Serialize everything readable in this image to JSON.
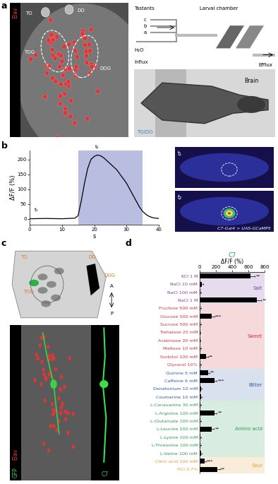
{
  "chart_data": [
    {
      "type": "line",
      "xlabel": "s",
      "ylabel": "ΔF/F (%)",
      "x": [
        0,
        5,
        10,
        14,
        15,
        16,
        17,
        18,
        19,
        20,
        21,
        22,
        23,
        24,
        25,
        26,
        27,
        28,
        29,
        30,
        31,
        32,
        33,
        34,
        35,
        36,
        37,
        38,
        39,
        40
      ],
      "values": [
        0,
        1,
        0,
        2,
        10,
        60,
        120,
        170,
        200,
        210,
        215,
        212,
        205,
        195,
        185,
        175,
        165,
        150,
        135,
        120,
        100,
        80,
        60,
        40,
        25,
        15,
        8,
        4,
        2,
        1
      ],
      "color": "#000000",
      "stimulus": [
        15,
        35
      ],
      "annotations": [
        {
          "text": "t₁",
          "x": 2,
          "y": 2
        },
        {
          "text": "t₂",
          "x": 21,
          "y": 215
        }
      ],
      "xlim": [
        0,
        40
      ],
      "xticks": [
        0,
        10,
        20,
        30,
        40
      ],
      "ylim": [
        -20,
        230
      ],
      "yticks": [
        0,
        50,
        100,
        150,
        200
      ]
    },
    {
      "type": "bar",
      "orientation": "horizontal",
      "title": "C7",
      "xlabel": "ΔF/F (%)",
      "categories": [
        "KCl 1 M",
        "NaCl 10 mM",
        "NaCl 100 mM",
        "NaCl 1 M",
        "Fructose 500 mM",
        "Glucose 500 mM",
        "Sucrose 500 mM",
        "Trehalose 25 mM",
        "Arabinose 20 mM",
        "Maltose 10 mM",
        "Sorbitol 100 mM",
        "Glycerol 10%",
        "Quinine 5 mM",
        "Caffeine 6 mM",
        "Denatonium 10 mM",
        "Coumarine 10 mM",
        "L-Canavanine 30 mM",
        "L-Arginine 100 mM",
        "L-Glutamate 100 mM",
        "L-Leucine 100 mM",
        "L-Lysine 100 mM",
        "L-Threonine 100 mM",
        "L-Valine 100 mM",
        "Citric acid 100 mM",
        "HCl 3.7%"
      ],
      "values": [
        630,
        30,
        10,
        700,
        10,
        150,
        10,
        5,
        5,
        10,
        80,
        10,
        100,
        180,
        15,
        20,
        10,
        180,
        10,
        150,
        10,
        10,
        15,
        60,
        220
      ],
      "errors": [
        50,
        15,
        10,
        60,
        10,
        30,
        10,
        5,
        5,
        10,
        20,
        10,
        20,
        30,
        10,
        10,
        10,
        30,
        10,
        25,
        10,
        10,
        10,
        15,
        30
      ],
      "significance": [
        "**",
        null,
        null,
        "**",
        null,
        "***",
        null,
        null,
        null,
        null,
        "**",
        null,
        "**",
        "***",
        null,
        null,
        null,
        "**",
        null,
        "**",
        null,
        null,
        null,
        "***",
        "**"
      ],
      "groups": [
        {
          "name": "Salt",
          "color": "#7b3f9e",
          "size": 4
        },
        {
          "name": "Sweet",
          "color": "#d0343c",
          "size": 8
        },
        {
          "name": "Bitter",
          "color": "#2f5aa8",
          "size": 4
        },
        {
          "name": "Amino acid",
          "color": "#2e9a55",
          "size": 7
        },
        {
          "name": "Sour",
          "color": "#e39b2d",
          "size": 2
        }
      ],
      "color": "#000000",
      "xlim": [
        0,
        800
      ],
      "xticks": [
        0,
        200,
        400,
        600,
        800
      ]
    }
  ],
  "panels": {
    "a": {
      "letter": "a",
      "stain": "Elav",
      "organs": [
        "TO",
        "DO"
      ],
      "ganglia": [
        "TOG",
        "DOG"
      ],
      "setup": {
        "tastants": "Tastants",
        "inlets": [
          "c",
          "b",
          "a"
        ],
        "water": "H₂O",
        "influx": "Influx",
        "chamber": "Larval chamber",
        "efflux": "Efflux"
      },
      "preparation": {
        "brain": "Brain",
        "organs": "TO/DO"
      }
    },
    "b": {
      "letter": "b",
      "frames": [
        "t₁",
        "t₂"
      ],
      "genotype": "C7-Gal4 > UAS-GCaMP5"
    },
    "c": {
      "letter": "c",
      "organs": [
        "TO",
        "DO"
      ],
      "ganglia": [
        "TOG",
        "DOG"
      ],
      "axis": [
        "A",
        "P"
      ],
      "stains": [
        "GFP",
        "Elav"
      ],
      "line": "C7"
    },
    "d": {
      "letter": "d"
    }
  }
}
